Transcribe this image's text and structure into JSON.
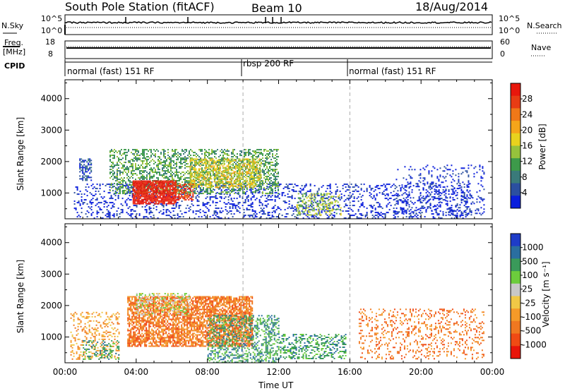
{
  "header": {
    "station_title": "South Pole Station (fitACF)",
    "beam": "Beam 10",
    "date": "18/Aug/2014"
  },
  "strip_labels": {
    "nsky": "N.Sky",
    "nsky_ticks": [
      "10^5",
      "10^0"
    ],
    "nsearch": "N.Search",
    "nsearch_ticks": [
      "10^5",
      "10^0"
    ],
    "freq": "Freq.",
    "freq_unit": "[MHz]",
    "freq_ticks": [
      "18",
      "8"
    ],
    "nave": "Nave",
    "nave_ticks": [
      "60",
      "0"
    ],
    "cpid": "CPID"
  },
  "cpid_segments": [
    {
      "label": "normal (fast) 151 RF",
      "start_hour": 0,
      "end_hour": 10
    },
    {
      "label": "rbsp 200 RF",
      "start_hour": 10,
      "end_hour": 16
    },
    {
      "label": "normal (fast) 151 RF",
      "start_hour": 16,
      "end_hour": 24
    }
  ],
  "colors": {
    "frame": "#000000",
    "separator": "#aaaaaa"
  },
  "chart_data": [
    {
      "type": "heatmap",
      "panel": "power",
      "xlabel": "",
      "ylabel": "Slant Range [km]",
      "y_ticks": [
        1000,
        2000,
        3000,
        4000
      ],
      "ylim": [
        180,
        4600
      ],
      "x_ticks": [
        "00:00",
        "04:00",
        "08:00",
        "12:00",
        "16:00",
        "20:00",
        "00:00"
      ],
      "xlim_hours": [
        0,
        24
      ],
      "colorbar": {
        "label": "Power [dB]",
        "ticks": [
          "4",
          "8",
          "12",
          "16",
          "20",
          "24",
          "28"
        ],
        "colors": [
          "#0a1edc",
          "#2b4fa0",
          "#3a7a7a",
          "#3d9a4a",
          "#96c23c",
          "#e8d21e",
          "#f5a51a",
          "#f07818",
          "#e83c14",
          "#e8170c"
        ]
      },
      "regions": [
        {
          "t0": 0.5,
          "t1": 22.8,
          "r0": 200,
          "r1": 1300,
          "value_class": 0,
          "density": 0.22
        },
        {
          "t0": 0.8,
          "t1": 1.5,
          "r0": 1400,
          "r1": 2100,
          "value_class": 1,
          "density": 0.5
        },
        {
          "t0": 2.5,
          "t1": 12,
          "r0": 1000,
          "r1": 2400,
          "value_class": 3,
          "density": 0.45
        },
        {
          "t0": 3.8,
          "t1": 6.2,
          "r0": 650,
          "r1": 1400,
          "value_class": 9,
          "density": 0.85
        },
        {
          "t0": 6.2,
          "t1": 7.2,
          "r0": 800,
          "r1": 1300,
          "value_class": 8,
          "density": 0.6
        },
        {
          "t0": 7.0,
          "t1": 11.0,
          "r0": 1200,
          "r1": 2100,
          "value_class": 5,
          "density": 0.45
        },
        {
          "t0": 13.0,
          "t1": 15.5,
          "r0": 300,
          "r1": 1000,
          "value_class": 4,
          "density": 0.35
        },
        {
          "t0": 18.5,
          "t1": 23.5,
          "r0": 300,
          "r1": 1900,
          "value_class": 0,
          "density": 0.15
        }
      ]
    },
    {
      "type": "heatmap",
      "panel": "velocity",
      "xlabel": "Time UT",
      "ylabel": "Slant Range [km]",
      "y_ticks": [
        1000,
        2000,
        3000,
        4000
      ],
      "ylim": [
        180,
        4600
      ],
      "x_ticks": [
        "00:00",
        "04:00",
        "08:00",
        "12:00",
        "16:00",
        "20:00",
        "00:00"
      ],
      "xlim_hours": [
        0,
        24
      ],
      "colorbar": {
        "label": "Velocity [m s⁻¹]",
        "ticks": [
          "1000",
          "500",
          "100",
          "25",
          "-25",
          "-100",
          "-500",
          "-1000"
        ],
        "colors": [
          "#1e3cc8",
          "#2a6ea0",
          "#3a9a5a",
          "#6ccc3c",
          "#c8c8c8",
          "#f0c846",
          "#f59a28",
          "#f07820",
          "#f04a14",
          "#e8140a"
        ]
      },
      "regions": [
        {
          "t0": 0.3,
          "t1": 3.0,
          "r0": 300,
          "r1": 1800,
          "value_class": 6,
          "density": 0.25
        },
        {
          "t0": 1.0,
          "t1": 3.0,
          "r0": 300,
          "r1": 900,
          "value_class": 2,
          "density": 0.3
        },
        {
          "t0": 3.5,
          "t1": 10.5,
          "r0": 700,
          "r1": 2300,
          "value_class": 7,
          "density": 0.7
        },
        {
          "t0": 4.0,
          "t1": 7.0,
          "r0": 1700,
          "r1": 2400,
          "value_class": 4,
          "density": 0.4
        },
        {
          "t0": 8.0,
          "t1": 12.0,
          "r0": 200,
          "r1": 1700,
          "value_class": 2,
          "density": 0.4
        },
        {
          "t0": 12.0,
          "t1": 15.8,
          "r0": 300,
          "r1": 1100,
          "value_class": 2,
          "density": 0.35
        },
        {
          "t0": 16.5,
          "t1": 23.5,
          "r0": 300,
          "r1": 1900,
          "value_class": 7,
          "density": 0.2
        }
      ]
    }
  ]
}
